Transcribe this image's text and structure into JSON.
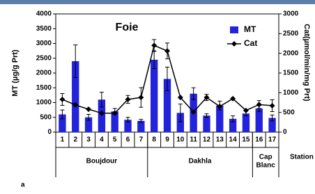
{
  "chart_data": {
    "type": "bar_line",
    "title": "Foie",
    "panel_label": "a",
    "x_label": "Station",
    "y_label": "MT (µg/g Prt)",
    "y2_label": "Cat(µmol/min/mg Prt)",
    "categories": [
      "1",
      "2",
      "3",
      "4",
      "5",
      "6",
      "7",
      "8",
      "9",
      "10",
      "11",
      "12",
      "13",
      "14",
      "15",
      "16",
      "17"
    ],
    "groups": [
      {
        "label": [
          "Boujdour"
        ],
        "size": 7
      },
      {
        "label": [
          "Dakhla"
        ],
        "size": 8
      },
      {
        "label": [
          "Cap",
          "Blanc"
        ],
        "size": 2
      }
    ],
    "series": [
      {
        "name": "MT",
        "type": "bar",
        "color": "#2323dc",
        "values": [
          600,
          2400,
          500,
          1100,
          700,
          420,
          380,
          2450,
          1800,
          650,
          1300,
          560,
          900,
          450,
          630,
          800,
          480
        ],
        "errors": [
          150,
          550,
          100,
          250,
          100,
          80,
          50,
          300,
          400,
          300,
          200,
          60,
          150,
          100,
          80,
          100,
          100
        ]
      },
      {
        "name": "Cat",
        "type": "line",
        "color": "#000000",
        "axis": "y2",
        "values": [
          830,
          690,
          580,
          480,
          480,
          830,
          880,
          2200,
          2060,
          880,
          510,
          880,
          650,
          850,
          550,
          700,
          670
        ],
        "errors": [
          150,
          0,
          0,
          0,
          0,
          100,
          250,
          150,
          200,
          0,
          0,
          80,
          0,
          0,
          0,
          100,
          150
        ]
      }
    ],
    "ylim": [
      0,
      4000
    ],
    "yticks": [
      0,
      500,
      1000,
      1500,
      2000,
      2500,
      3000,
      3500,
      4000
    ],
    "y2lim": [
      0,
      3000
    ],
    "y2ticks": [
      0,
      500,
      1000,
      1500,
      2000,
      2500,
      3000
    ]
  }
}
